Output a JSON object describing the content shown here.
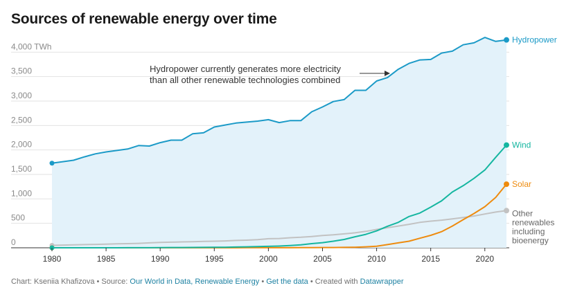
{
  "chart_data": {
    "type": "line",
    "title": "Sources of renewable energy over time",
    "unit": "TWh",
    "xlim": [
      1980,
      2022
    ],
    "ylim": [
      0,
      4500
    ],
    "x_ticks": [
      "1980",
      "1985",
      "1990",
      "1995",
      "2000",
      "2005",
      "2010",
      "2015",
      "2020"
    ],
    "y_ticks": [
      {
        "value": 0,
        "label": "0"
      },
      {
        "value": 500,
        "label": "500"
      },
      {
        "value": 1000,
        "label": "1,000"
      },
      {
        "value": 1500,
        "label": "1,500"
      },
      {
        "value": 2000,
        "label": "2,000"
      },
      {
        "value": 2500,
        "label": "2,500"
      },
      {
        "value": 3000,
        "label": "3,000"
      },
      {
        "value": 3500,
        "label": "3,500"
      },
      {
        "value": 4000,
        "label": "4,000 TWh"
      }
    ],
    "x": [
      1980,
      1981,
      1982,
      1983,
      1984,
      1985,
      1986,
      1987,
      1988,
      1989,
      1990,
      1991,
      1992,
      1993,
      1994,
      1995,
      1996,
      1997,
      1998,
      1999,
      2000,
      2001,
      2002,
      2003,
      2004,
      2005,
      2006,
      2007,
      2008,
      2009,
      2010,
      2011,
      2012,
      2013,
      2014,
      2015,
      2016,
      2017,
      2018,
      2019,
      2020,
      2021,
      2022
    ],
    "series": [
      {
        "name": "Hydropower",
        "color": "#1b9ac7",
        "values": [
          1730,
          1760,
          1790,
          1860,
          1920,
          1960,
          1990,
          2020,
          2090,
          2080,
          2150,
          2200,
          2200,
          2330,
          2350,
          2470,
          2510,
          2550,
          2570,
          2590,
          2620,
          2560,
          2600,
          2600,
          2780,
          2880,
          2990,
          3030,
          3220,
          3220,
          3410,
          3480,
          3650,
          3770,
          3840,
          3850,
          3980,
          4020,
          4150,
          4190,
          4300,
          4220,
          4250
        ],
        "label_lines": [
          "Hydropower"
        ]
      },
      {
        "name": "Wind",
        "color": "#15b6a0",
        "values": [
          0,
          0,
          0,
          0,
          0,
          0,
          0,
          1,
          1,
          2,
          4,
          5,
          6,
          7,
          9,
          10,
          12,
          15,
          20,
          25,
          30,
          35,
          45,
          60,
          85,
          105,
          135,
          170,
          225,
          275,
          345,
          440,
          520,
          640,
          710,
          830,
          960,
          1140,
          1270,
          1420,
          1590,
          1850,
          2100
        ],
        "label_lines": [
          "Wind"
        ]
      },
      {
        "name": "Solar",
        "color": "#ee8b0e",
        "values": [
          0,
          0,
          0,
          0,
          0,
          0,
          0,
          0,
          0,
          0,
          0,
          0,
          0,
          0,
          0,
          0,
          0,
          0,
          1,
          1,
          1,
          2,
          2,
          3,
          4,
          5,
          6,
          8,
          12,
          20,
          32,
          65,
          100,
          135,
          195,
          255,
          330,
          445,
          575,
          700,
          840,
          1030,
          1300
        ],
        "label_lines": [
          "Solar"
        ]
      },
      {
        "name": "Other renewables including bioenergy",
        "color": "#c2c2c2",
        "values": [
          50,
          55,
          60,
          65,
          70,
          75,
          80,
          85,
          90,
          100,
          110,
          115,
          120,
          125,
          130,
          135,
          140,
          150,
          155,
          165,
          185,
          190,
          205,
          215,
          230,
          250,
          265,
          285,
          305,
          335,
          375,
          410,
          445,
          480,
          520,
          545,
          565,
          590,
          620,
          650,
          690,
          730,
          760
        ],
        "label_lines": [
          "Other",
          "renewables",
          "including",
          "bioenergy"
        ]
      }
    ],
    "fill_series": "Hydropower",
    "fill_color": "#e3f2fa",
    "annotation": {
      "lines": [
        "Hydropower currently generates more electricity",
        "than all other renewable technologies combined"
      ]
    }
  },
  "footer": {
    "chart_by": "Chart: Kseniia Khafizova",
    "sep1": " • Source: ",
    "source_link": "Our World in Data, Renewable Energy",
    "sep2": " • ",
    "get_data": "Get the data",
    "sep3": " • Created with ",
    "tool": "Datawrapper"
  }
}
